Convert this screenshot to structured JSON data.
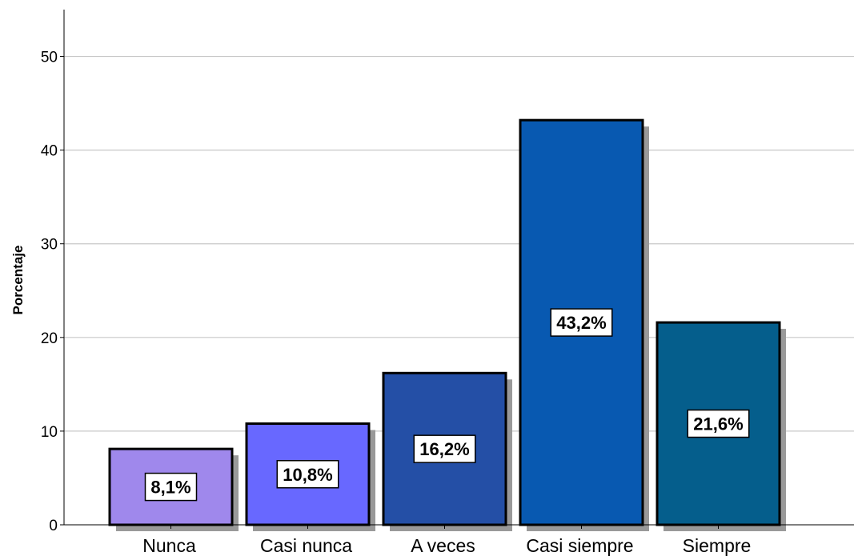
{
  "chart_data": {
    "type": "bar",
    "title": "",
    "xlabel": "",
    "ylabel": "Porcentaje",
    "ylim": [
      0,
      55
    ],
    "yticks": [
      0,
      10,
      20,
      30,
      40,
      50
    ],
    "grid": true,
    "categories": [
      "Nunca",
      "Casi nunca",
      "A veces",
      "Casi siempre",
      "Siempre"
    ],
    "values": [
      8.1,
      10.8,
      16.2,
      43.2,
      21.6
    ],
    "data_labels": [
      "8,1%",
      "10,8%",
      "16,2%",
      "43,2%",
      "21,6%"
    ],
    "colors": [
      "#9f88ec",
      "#6868ff",
      "#244fa6",
      "#0859b1",
      "#055e8c"
    ],
    "shadow_color": "#999999",
    "grid_color": "#c8c8c8"
  }
}
